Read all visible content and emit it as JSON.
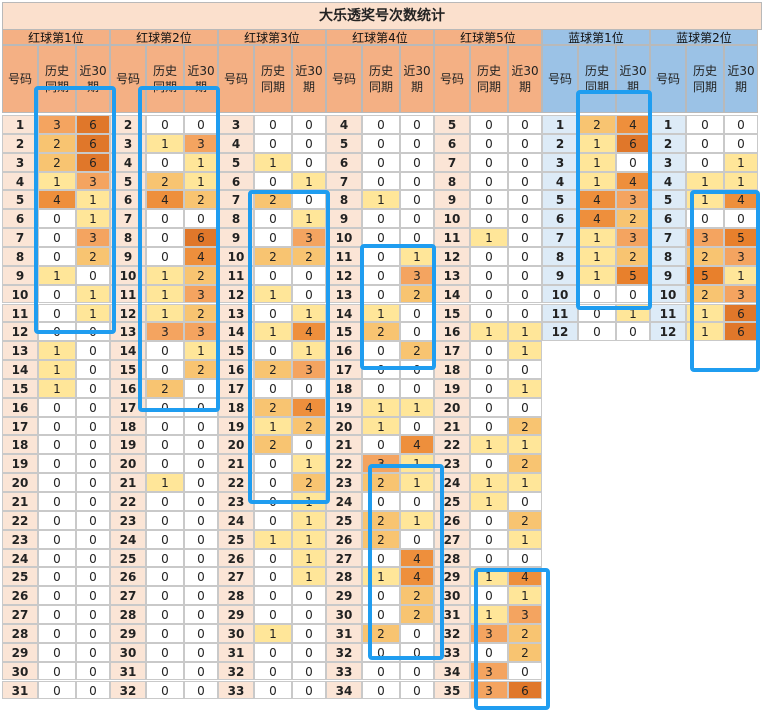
{
  "title": "大乐透奖号次数统计",
  "groups": [
    {
      "label": "红球第1位",
      "color": "red",
      "nums": [
        1,
        2,
        3,
        4,
        5,
        6,
        7,
        8,
        9,
        10,
        11,
        12,
        13,
        14,
        15,
        16,
        17,
        18,
        19,
        20,
        21,
        22,
        23,
        24,
        25,
        26,
        27,
        28,
        29,
        30,
        31
      ],
      "hist": [
        3,
        2,
        2,
        1,
        4,
        0,
        0,
        0,
        1,
        0,
        0,
        0,
        1,
        1,
        1,
        0,
        0,
        0,
        0,
        0,
        0,
        0,
        0,
        0,
        0,
        0,
        0,
        0,
        0,
        0,
        0
      ],
      "r30": [
        6,
        6,
        6,
        3,
        1,
        1,
        3,
        2,
        0,
        1,
        1,
        0,
        0,
        0,
        0,
        0,
        0,
        0,
        0,
        0,
        0,
        0,
        0,
        0,
        0,
        0,
        0,
        0,
        0,
        0,
        0
      ]
    },
    {
      "label": "红球第2位",
      "color": "red",
      "nums": [
        2,
        3,
        4,
        5,
        6,
        7,
        8,
        9,
        10,
        11,
        12,
        13,
        14,
        15,
        16,
        17,
        18,
        19,
        20,
        21,
        22,
        23,
        24,
        25,
        26,
        27,
        28,
        29,
        30,
        31,
        32
      ],
      "hist": [
        0,
        1,
        0,
        2,
        4,
        0,
        0,
        0,
        1,
        1,
        1,
        3,
        0,
        0,
        2,
        0,
        0,
        0,
        0,
        1,
        0,
        0,
        0,
        0,
        0,
        0,
        0,
        0,
        0,
        0,
        0
      ],
      "r30": [
        0,
        3,
        1,
        1,
        2,
        0,
        6,
        4,
        2,
        3,
        2,
        3,
        1,
        2,
        0,
        0,
        0,
        0,
        0,
        0,
        0,
        0,
        0,
        0,
        0,
        0,
        0,
        0,
        0,
        0,
        0
      ]
    },
    {
      "label": "红球第3位",
      "color": "red",
      "nums": [
        3,
        4,
        5,
        6,
        7,
        8,
        9,
        10,
        11,
        12,
        13,
        14,
        15,
        16,
        17,
        18,
        19,
        20,
        21,
        22,
        23,
        24,
        25,
        26,
        27,
        28,
        29,
        30,
        31,
        32,
        33
      ],
      "hist": [
        0,
        0,
        1,
        0,
        2,
        0,
        0,
        2,
        0,
        1,
        0,
        1,
        0,
        2,
        0,
        2,
        1,
        2,
        0,
        0,
        0,
        0,
        1,
        0,
        0,
        0,
        0,
        1,
        0,
        0,
        0
      ],
      "r30": [
        0,
        0,
        0,
        1,
        0,
        1,
        3,
        2,
        0,
        0,
        1,
        4,
        1,
        3,
        0,
        4,
        2,
        0,
        1,
        2,
        1,
        1,
        1,
        1,
        1,
        0,
        0,
        0,
        0,
        0,
        0
      ]
    },
    {
      "label": "红球第4位",
      "color": "red",
      "nums": [
        4,
        5,
        6,
        7,
        8,
        9,
        10,
        11,
        12,
        13,
        14,
        15,
        16,
        17,
        18,
        19,
        20,
        21,
        22,
        23,
        24,
        25,
        26,
        27,
        28,
        29,
        30,
        31,
        32,
        33,
        34
      ],
      "hist": [
        0,
        0,
        0,
        0,
        1,
        0,
        0,
        0,
        0,
        0,
        1,
        2,
        0,
        0,
        0,
        1,
        1,
        0,
        3,
        2,
        0,
        2,
        2,
        0,
        1,
        0,
        0,
        2,
        0,
        0,
        0
      ],
      "r30": [
        0,
        0,
        0,
        0,
        0,
        0,
        0,
        1,
        3,
        2,
        0,
        0,
        2,
        0,
        0,
        1,
        0,
        4,
        1,
        1,
        0,
        1,
        0,
        4,
        4,
        2,
        2,
        0,
        0,
        0,
        0
      ]
    },
    {
      "label": "红球第5位",
      "color": "red",
      "nums": [
        5,
        6,
        7,
        8,
        9,
        10,
        11,
        12,
        13,
        14,
        15,
        16,
        17,
        18,
        19,
        20,
        21,
        22,
        23,
        24,
        25,
        26,
        27,
        28,
        29,
        30,
        31,
        32,
        33,
        34,
        35
      ],
      "hist": [
        0,
        0,
        0,
        0,
        0,
        0,
        1,
        0,
        0,
        0,
        0,
        1,
        0,
        0,
        0,
        0,
        0,
        1,
        0,
        1,
        1,
        0,
        0,
        0,
        1,
        0,
        1,
        3,
        0,
        3,
        3
      ],
      "r30": [
        0,
        0,
        0,
        0,
        0,
        0,
        0,
        0,
        0,
        0,
        0,
        1,
        1,
        0,
        1,
        0,
        2,
        1,
        2,
        1,
        0,
        2,
        1,
        0,
        4,
        1,
        3,
        2,
        2,
        0,
        6
      ]
    },
    {
      "label": "蓝球第1位",
      "color": "blue",
      "nums": [
        1,
        2,
        3,
        4,
        5,
        6,
        7,
        8,
        9,
        10,
        11,
        12
      ],
      "hist": [
        2,
        1,
        1,
        1,
        4,
        4,
        1,
        1,
        1,
        0,
        0,
        0
      ],
      "r30": [
        4,
        6,
        0,
        4,
        3,
        2,
        3,
        2,
        5,
        0,
        1,
        0
      ]
    },
    {
      "label": "蓝球第2位",
      "color": "blue",
      "nums": [
        1,
        2,
        3,
        4,
        5,
        6,
        7,
        8,
        9,
        10,
        11,
        12
      ],
      "hist": [
        0,
        0,
        0,
        1,
        1,
        0,
        3,
        2,
        5,
        2,
        1,
        1
      ],
      "r30": [
        0,
        0,
        1,
        1,
        4,
        0,
        5,
        3,
        1,
        3,
        6,
        6
      ]
    }
  ],
  "col_headers": {
    "num": "号码",
    "hist": "历史\n同期",
    "r30": "近30\n期"
  },
  "colors": {
    "title_bg": "#fbe0cd",
    "red_group_bg": "#f4b084",
    "blue_group_bg": "#9bc2e6",
    "red_num_bg": "#fbe5d6",
    "blue_num_bg": "#ddebf7",
    "v1": "#ffe699",
    "v2": "#f8c471",
    "v3": "#f4a460",
    "v4": "#ee8f3c",
    "v5": "#e8802c",
    "v6": "#e0772a",
    "highlight": "#1f9df0"
  }
}
